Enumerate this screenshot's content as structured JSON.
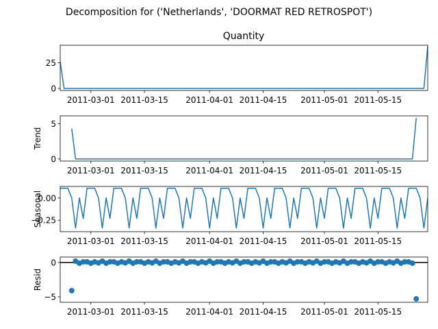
{
  "suptitle": "Decomposition for ('Netherlands', 'DOORMAT RED RETROSPOT')",
  "line_color": "#1f77b4",
  "x_tick_labels": [
    "2011-03-01",
    "2011-03-15",
    "2011-04-01",
    "2011-04-15",
    "2011-05-01",
    "2011-05-15"
  ],
  "x_tick_days": [
    8,
    22,
    39,
    53,
    69,
    83
  ],
  "chart_data": [
    {
      "type": "line",
      "title": "Quantity",
      "ylabel": "",
      "xlabel": "",
      "x_start": "2011-02-21",
      "x_range_days": [
        0,
        96
      ],
      "ylim": [
        -2,
        42
      ],
      "yticks": [
        0,
        25
      ],
      "ytick_labels": [
        "0",
        "25"
      ],
      "series": [
        {
          "name": "Quantity",
          "x": [
            0,
            1,
            95,
            96
          ],
          "values": [
            26,
            0,
            0,
            41
          ]
        }
      ]
    },
    {
      "type": "line",
      "title": "",
      "ylabel": "Trend",
      "xlabel": "",
      "x_range_days": [
        0,
        96
      ],
      "ylim": [
        -0.3,
        6.1
      ],
      "yticks": [
        0,
        5
      ],
      "ytick_labels": [
        "0",
        "5"
      ],
      "series": [
        {
          "name": "Trend",
          "x": [
            3,
            4,
            92,
            93
          ],
          "values": [
            4.3,
            0,
            0,
            5.8
          ]
        }
      ]
    },
    {
      "type": "line",
      "title": "",
      "ylabel": "Seasonal",
      "xlabel": "",
      "x_range_days": [
        0,
        96
      ],
      "ylim": [
        -0.38,
        0.13
      ],
      "yticks": [
        0,
        -0.25
      ],
      "ytick_labels": [
        "0.00",
        "−0.25"
      ],
      "period": 7,
      "pattern": [
        0.11,
        0.11,
        0.11,
        0.0,
        -0.34,
        0.0,
        -0.23
      ],
      "series": [
        {
          "name": "Seasonal",
          "x": [],
          "values": []
        }
      ]
    },
    {
      "type": "scatter",
      "title": "",
      "ylabel": "Resid",
      "xlabel": "",
      "x_range_days": [
        0,
        96
      ],
      "ylim": [
        -5.8,
        0.8
      ],
      "yticks": [
        0,
        -5
      ],
      "ytick_labels": [
        "0",
        "−5"
      ],
      "zero_line": true,
      "base_pattern": [
        0.1,
        -0.1,
        0.1,
        -0.05,
        0.2,
        -0.1,
        0.1
      ],
      "series": [
        {
          "name": "Resid",
          "x": [
            3,
            93
          ],
          "values": [
            -4.1,
            -5.3
          ]
        }
      ]
    }
  ]
}
